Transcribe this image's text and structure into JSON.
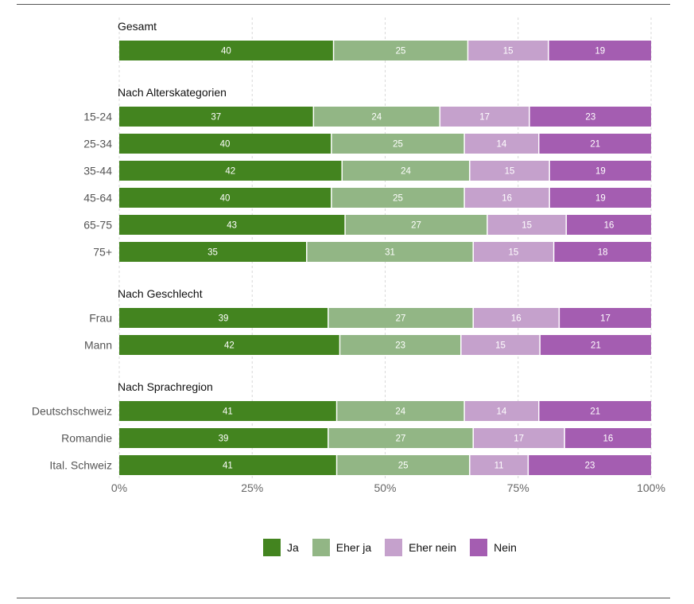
{
  "chart_data": {
    "type": "bar",
    "orientation": "horizontal",
    "stacked": true,
    "groups": [
      {
        "title": "Gesamt",
        "rows": [
          {
            "label": "",
            "values": [
              40,
              25,
              15,
              19
            ]
          }
        ]
      },
      {
        "title": "Nach Alterskategorien",
        "rows": [
          {
            "label": "15-24",
            "values": [
              37,
              24,
              17,
              23
            ]
          },
          {
            "label": "25-34",
            "values": [
              40,
              25,
              14,
              21
            ]
          },
          {
            "label": "35-44",
            "values": [
              42,
              24,
              15,
              19
            ]
          },
          {
            "label": "45-64",
            "values": [
              40,
              25,
              16,
              19
            ]
          },
          {
            "label": "65-75",
            "values": [
              43,
              27,
              15,
              16
            ]
          },
          {
            "label": "75+",
            "values": [
              35,
              31,
              15,
              18
            ]
          }
        ]
      },
      {
        "title": "Nach Geschlecht",
        "rows": [
          {
            "label": "Frau",
            "values": [
              39,
              27,
              16,
              17
            ]
          },
          {
            "label": "Mann",
            "values": [
              42,
              23,
              15,
              21
            ]
          }
        ]
      },
      {
        "title": "Nach Sprachregion",
        "rows": [
          {
            "label": "Deutschschweiz",
            "values": [
              41,
              24,
              14,
              21
            ]
          },
          {
            "label": "Romandie",
            "values": [
              39,
              27,
              17,
              16
            ]
          },
          {
            "label": "Ital. Schweiz",
            "values": [
              41,
              25,
              11,
              23
            ]
          }
        ]
      }
    ],
    "series": [
      {
        "name": "Ja",
        "color": "#43841f"
      },
      {
        "name": "Eher ja",
        "color": "#92b685"
      },
      {
        "name": "Eher nein",
        "color": "#c5a1cc"
      },
      {
        "name": "Nein",
        "color": "#a45db1"
      }
    ],
    "x_ticks": [
      "0%",
      "25%",
      "50%",
      "75%",
      "100%"
    ],
    "xlim": [
      0,
      100
    ],
    "legend_position": "bottom"
  }
}
